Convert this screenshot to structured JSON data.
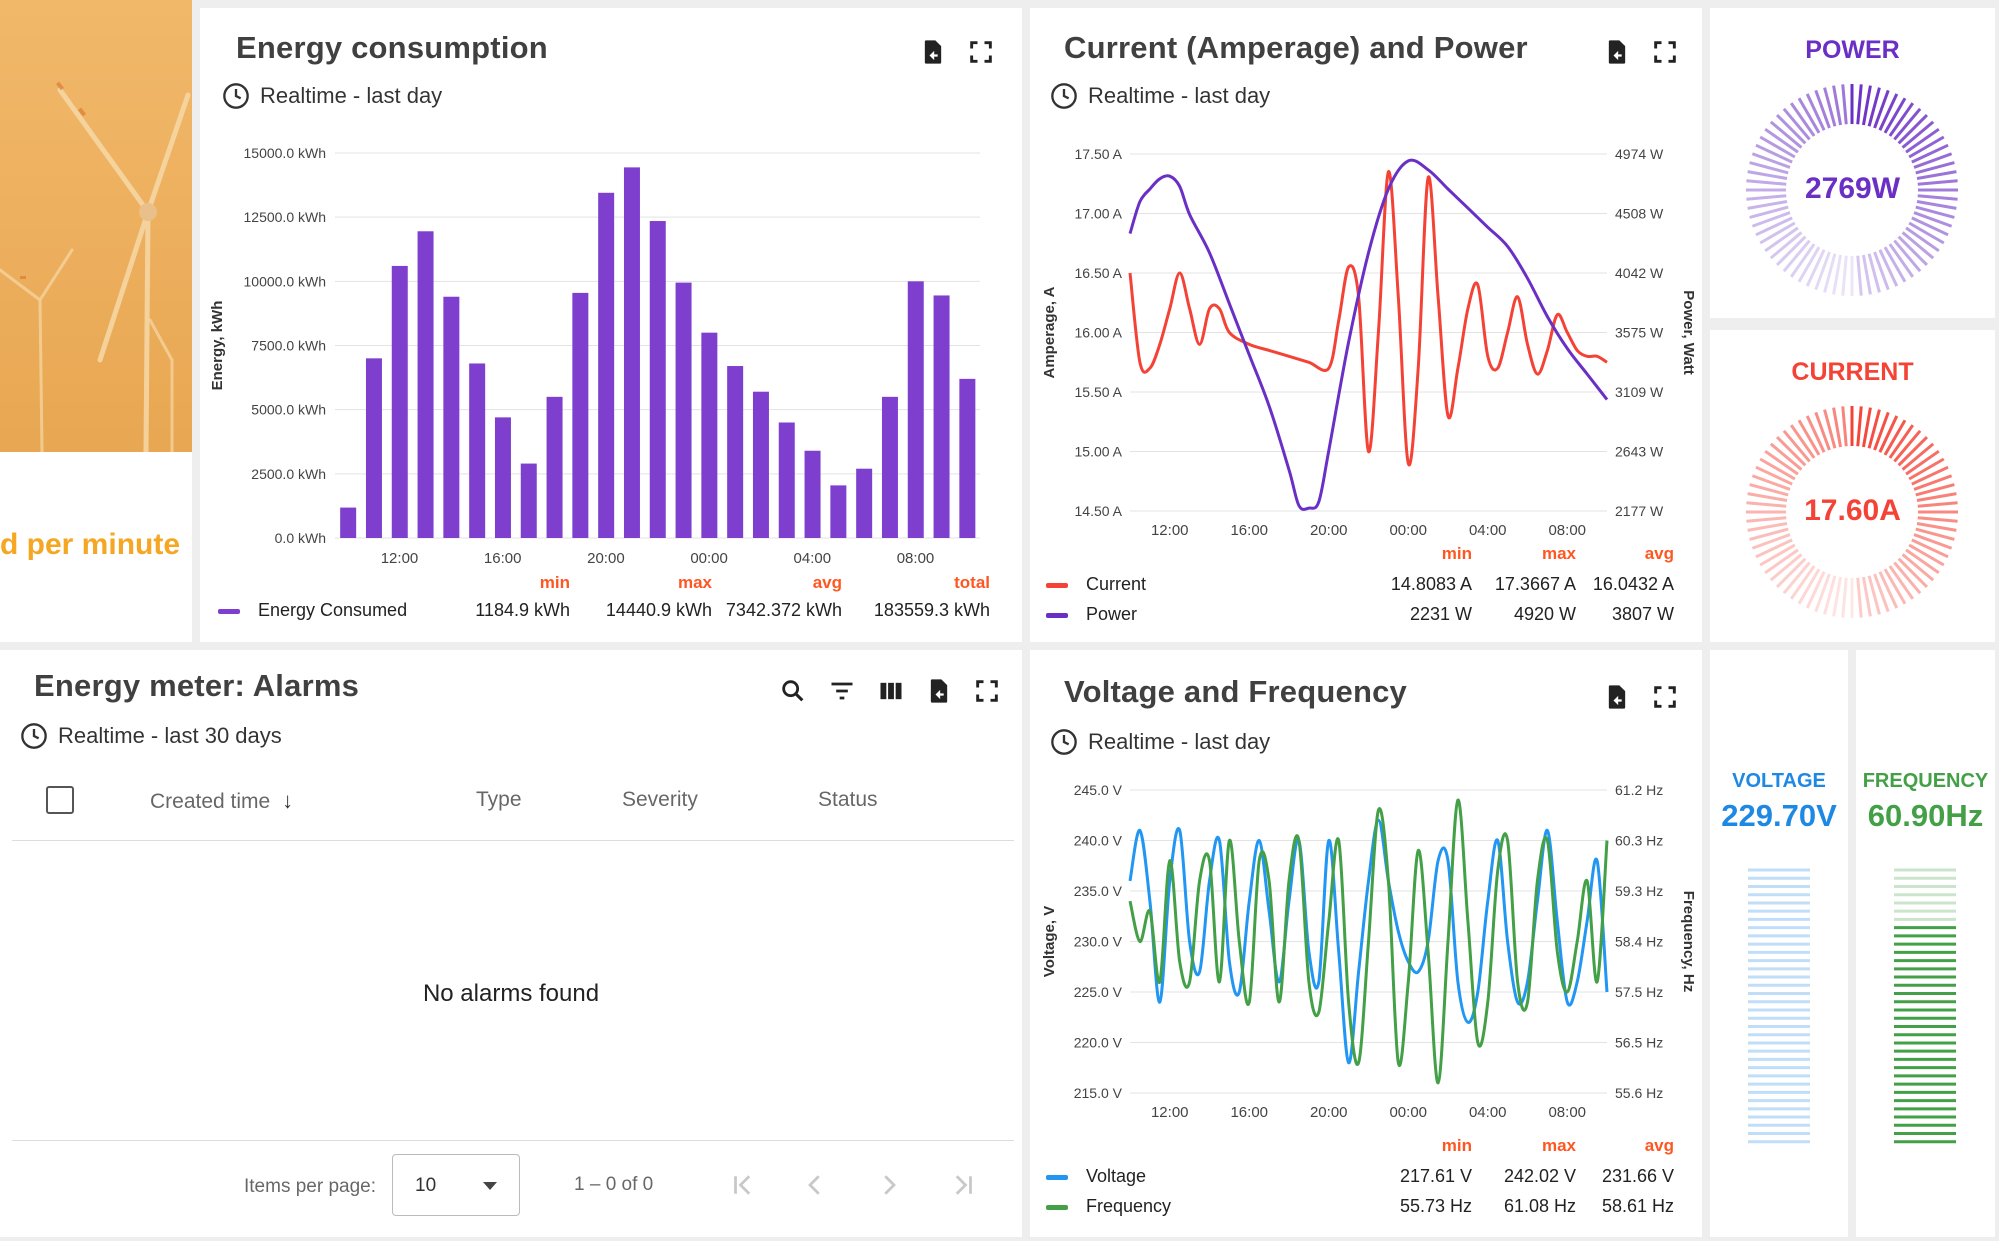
{
  "hero": {
    "caption": "d per minute",
    "colors": {
      "sky": "#ecab59",
      "text": "#f5a623"
    }
  },
  "energy_card": {
    "title": "Energy consumption",
    "subtitle": "Realtime - last day",
    "icons": [
      "export-icon",
      "fullscreen-icon"
    ],
    "legend": {
      "headers": [
        "min",
        "max",
        "avg",
        "total"
      ],
      "series_name": "Energy Consumed",
      "values": [
        "1184.9 kWh",
        "14440.9 kWh",
        "7342.372 kWh",
        "183559.3 kWh"
      ]
    }
  },
  "current_card": {
    "title": "Current (Amperage) and Power",
    "subtitle": "Realtime - last day",
    "legend": {
      "headers": [
        "min",
        "max",
        "avg"
      ],
      "rows": [
        {
          "name": "Current",
          "values": [
            "14.8083 A",
            "17.3667 A",
            "16.0432 A"
          ]
        },
        {
          "name": "Power",
          "values": [
            "2231 W",
            "4920 W",
            "3807 W"
          ]
        }
      ]
    }
  },
  "power_gauge": {
    "label": "POWER",
    "value": "2769W",
    "fraction": 0.5,
    "color": "#6a2fc4"
  },
  "current_gauge": {
    "label": "CURRENT",
    "value": "17.60A",
    "fraction": 0.5,
    "color": "#f44336"
  },
  "alarms_card": {
    "title": "Energy meter: Alarms",
    "subtitle": "Realtime - last 30 days",
    "columns": [
      "Created time",
      "Type",
      "Severity",
      "Status"
    ],
    "empty_message": "No alarms found",
    "paginator": {
      "items_per_page_label": "Items per page:",
      "page_size": "10",
      "range": "1 – 0 of 0"
    }
  },
  "voltage_card": {
    "title": "Voltage and Frequency",
    "subtitle": "Realtime - last day",
    "legend": {
      "headers": [
        "min",
        "max",
        "avg"
      ],
      "rows": [
        {
          "name": "Voltage",
          "values": [
            "217.61 V",
            "242.02 V",
            "231.66 V"
          ]
        },
        {
          "name": "Frequency",
          "values": [
            "55.73 Hz",
            "61.08 Hz",
            "58.61 Hz"
          ]
        }
      ]
    }
  },
  "voltage_bar": {
    "label": "VOLTAGE",
    "value": "229.70V",
    "fraction": 0.0,
    "color": "#1e88e5"
  },
  "frequency_bar": {
    "label": "FREQUENCY",
    "value": "60.90Hz",
    "fraction": 0.82,
    "color": "#43a047"
  },
  "chart_data": [
    {
      "type": "bar",
      "ylabel": "Energy, kWh",
      "ylim": [
        0,
        15000
      ],
      "yticks": [
        "0.0 kWh",
        "2500.0 kWh",
        "5000.0 kWh",
        "7500.0 kWh",
        "10000.0 kWh",
        "12500.0 kWh",
        "15000.0 kWh"
      ],
      "xticks": [
        "12:00",
        "16:00",
        "20:00",
        "00:00",
        "04:00",
        "08:00"
      ],
      "series": [
        {
          "name": "Energy Consumed",
          "color": "#7e3fce",
          "values": [
            1185,
            7000,
            10600,
            11950,
            9400,
            6800,
            4700,
            2900,
            5500,
            9550,
            13450,
            14440,
            12350,
            9950,
            8000,
            6700,
            5700,
            4500,
            3400,
            2050,
            2700,
            5500,
            10000,
            9450,
            6200
          ]
        }
      ]
    },
    {
      "type": "line",
      "ylabel": "Amperage, A",
      "y2label": "Power, Watt",
      "ylim": [
        14.5,
        17.5
      ],
      "y2lim": [
        2177,
        4974
      ],
      "yticks": [
        "14.50 A",
        "15.00 A",
        "15.50 A",
        "16.00 A",
        "16.50 A",
        "17.00 A",
        "17.50 A"
      ],
      "y2ticks": [
        "2177 W",
        "2643 W",
        "3109 W",
        "3575 W",
        "4042 W",
        "4508 W",
        "4974 W"
      ],
      "xticks": [
        "12:00",
        "16:00",
        "20:00",
        "00:00",
        "04:00",
        "08:00"
      ],
      "series": [
        {
          "name": "Current",
          "color": "#f44336",
          "axis": "left",
          "x": [
            0,
            0.5,
            1,
            1.5,
            2,
            2.5,
            3,
            3.5,
            4,
            4.5,
            5,
            6,
            7,
            8,
            9,
            10,
            10.5,
            11,
            11.5,
            12,
            12.5,
            13,
            13.5,
            14,
            14.5,
            15,
            15.5,
            16,
            16.5,
            17,
            17.5,
            18,
            18.5,
            19,
            19.5,
            20,
            20.5,
            21,
            21.5,
            22,
            22.5,
            23,
            23.5,
            24
          ],
          "values": [
            16.5,
            15.75,
            15.7,
            15.9,
            16.2,
            16.5,
            16.2,
            15.9,
            16.2,
            16.2,
            16.0,
            15.9,
            15.85,
            15.8,
            15.75,
            15.7,
            16.1,
            16.55,
            16.3,
            15.0,
            16.0,
            17.35,
            16.3,
            14.9,
            15.7,
            17.3,
            16.3,
            15.3,
            15.7,
            16.2,
            16.4,
            15.8,
            15.7,
            16.0,
            16.3,
            15.9,
            15.65,
            15.85,
            16.15,
            16.0,
            15.85,
            15.8,
            15.8,
            15.75
          ]
        },
        {
          "name": "Power",
          "color": "#6a2fc4",
          "axis": "right",
          "x": [
            0,
            0.5,
            1,
            1.5,
            2,
            2.5,
            3,
            4,
            5,
            6,
            7,
            8,
            8.5,
            9,
            9.5,
            10,
            11,
            12,
            13,
            14,
            15,
            16,
            17,
            18,
            19,
            20,
            21,
            22,
            23,
            24
          ],
          "values": [
            4350,
            4600,
            4700,
            4780,
            4800,
            4720,
            4500,
            4200,
            3800,
            3400,
            3000,
            2500,
            2220,
            2200,
            2250,
            2650,
            3500,
            4200,
            4700,
            4920,
            4850,
            4700,
            4550,
            4400,
            4250,
            4000,
            3700,
            3450,
            3250,
            3050
          ]
        }
      ]
    },
    {
      "type": "line",
      "ylabel": "Voltage, V",
      "y2label": "Frequency, Hz",
      "ylim": [
        215,
        245
      ],
      "y2lim": [
        55.6,
        61.2
      ],
      "yticks": [
        "215.0 V",
        "220.0 V",
        "225.0 V",
        "230.0 V",
        "235.0 V",
        "240.0 V",
        "245.0 V"
      ],
      "y2ticks": [
        "55.6 Hz",
        "56.5 Hz",
        "57.5 Hz",
        "58.4 Hz",
        "59.3 Hz",
        "60.3 Hz",
        "61.2 Hz"
      ],
      "xticks": [
        "12:00",
        "16:00",
        "20:00",
        "00:00",
        "04:00",
        "08:00"
      ],
      "series": [
        {
          "name": "Voltage",
          "color": "#2196f3",
          "axis": "left",
          "x": [
            0,
            0.5,
            1,
            1.5,
            2,
            2.5,
            3,
            3.5,
            4,
            4.5,
            5,
            5.5,
            6,
            6.5,
            7,
            7.5,
            8,
            8.5,
            9,
            9.5,
            10,
            10.5,
            11,
            11.5,
            12,
            12.5,
            13,
            13.5,
            14,
            14.5,
            15,
            15.5,
            16,
            16.5,
            17,
            17.5,
            18,
            18.5,
            19,
            19.5,
            20,
            20.5,
            21,
            21.5,
            22,
            22.5,
            23,
            23.5,
            24
          ],
          "values": [
            236,
            241,
            234,
            224,
            236,
            241,
            230,
            227,
            236,
            240,
            228,
            225,
            234,
            240,
            233,
            226,
            234,
            240,
            229,
            226,
            240,
            229,
            218,
            227,
            236,
            242,
            236,
            231,
            228,
            227,
            230,
            238,
            238,
            226,
            222,
            225,
            234,
            240,
            230,
            224,
            226,
            234,
            241,
            232,
            224,
            226,
            232,
            238,
            225
          ]
        },
        {
          "name": "Frequency",
          "color": "#43a047",
          "axis": "left",
          "x": [
            0,
            0.5,
            1,
            1.5,
            2,
            2.5,
            3,
            3.5,
            4,
            4.5,
            5,
            5.5,
            6,
            6.5,
            7,
            7.5,
            8,
            8.5,
            9,
            9.5,
            10,
            10.5,
            11,
            11.5,
            12,
            12.5,
            13,
            13.5,
            14,
            14.5,
            15,
            15.5,
            16,
            16.5,
            17,
            17.5,
            18,
            18.5,
            19,
            19.5,
            20,
            20.5,
            21,
            21.5,
            22,
            22.5,
            23,
            23.5,
            24
          ],
          "values": [
            234,
            230,
            233,
            226,
            238,
            228,
            226,
            236,
            238,
            226,
            240,
            230,
            224,
            238,
            236,
            224,
            236,
            240,
            226,
            223,
            232,
            240,
            224,
            218,
            230,
            243,
            236,
            218,
            226,
            239,
            229,
            216,
            230,
            244,
            232,
            220,
            224,
            237,
            240,
            226,
            224,
            236,
            240,
            229,
            225,
            230,
            236,
            226,
            240
          ]
        }
      ]
    }
  ]
}
